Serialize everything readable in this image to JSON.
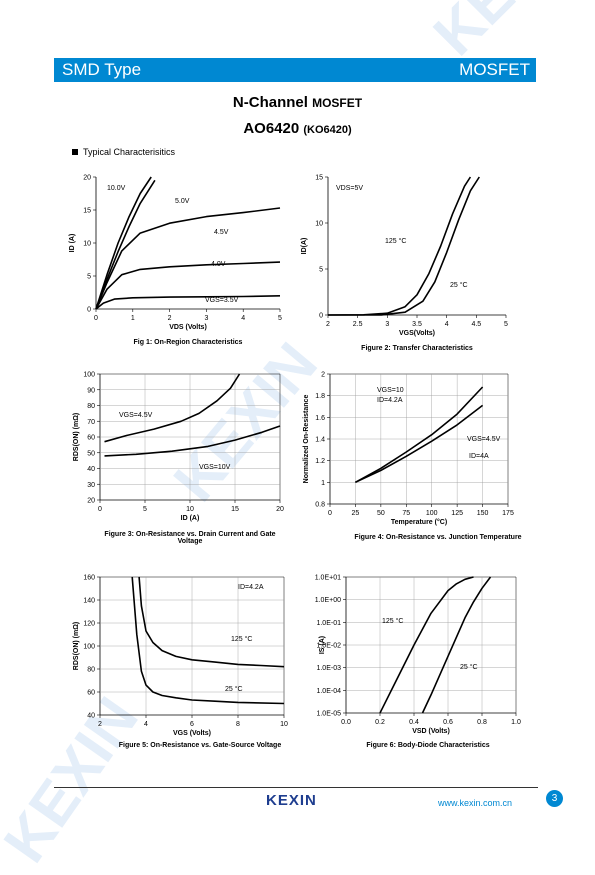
{
  "header": {
    "left_label": "SMD Type",
    "right_label": "MOSFET"
  },
  "title": {
    "line1_main": "N-Channel",
    "line1_small": "MOSFET",
    "line2_main": "AO6420",
    "line2_small": "(KO6420)"
  },
  "section_title": "Typical  Characterisitics",
  "watermark": "KEXIN",
  "footer": {
    "logo": "KEXIN",
    "url": "www.kexin.com.cn",
    "page": "3"
  },
  "colors": {
    "banner": "#0088d2",
    "logo": "#1e3d8f",
    "watermark": "#e4eef9"
  },
  "chart_data": [
    {
      "type": "line",
      "caption": "Fig 1: On-Region Characteristics",
      "xlabel": "VDS (Volts)",
      "ylabel": "ID (A)",
      "xlim": [
        0,
        5
      ],
      "ylim": [
        0,
        20
      ],
      "xticks": [
        0,
        1,
        2,
        3,
        4,
        5
      ],
      "yticks": [
        0,
        5,
        10,
        15,
        20
      ],
      "series": [
        {
          "name": "10.0V",
          "x": [
            0,
            0.3,
            0.6,
            0.9,
            1.2,
            1.5
          ],
          "y": [
            0,
            5.2,
            10,
            14,
            17.5,
            20
          ]
        },
        {
          "name": "5.0V",
          "x": [
            0,
            0.3,
            0.6,
            0.9,
            1.2,
            1.6
          ],
          "y": [
            0,
            4.5,
            8.7,
            12.5,
            16,
            19.5
          ]
        },
        {
          "name": "4.5V",
          "x": [
            0,
            0.3,
            0.7,
            1.2,
            2,
            3,
            4,
            5
          ],
          "y": [
            0,
            4,
            8.8,
            11.5,
            13,
            14,
            14.6,
            15.3
          ]
        },
        {
          "name": "4.0V",
          "x": [
            0,
            0.3,
            0.7,
            1.2,
            2,
            3,
            4,
            5
          ],
          "y": [
            0,
            3,
            5.2,
            6,
            6.4,
            6.7,
            6.9,
            7.1
          ]
        },
        {
          "name": "VGS=3.5V",
          "x": [
            0,
            0.2,
            0.5,
            1,
            2,
            3,
            4,
            5
          ],
          "y": [
            0,
            0.9,
            1.5,
            1.7,
            1.8,
            1.85,
            1.9,
            2
          ]
        }
      ]
    },
    {
      "type": "line",
      "caption": "Figure 2: Transfer Characteristics",
      "xlabel": "VGS(Volts)",
      "ylabel": "ID(A)",
      "xlim": [
        2,
        5
      ],
      "ylim": [
        0,
        15
      ],
      "xticks": [
        2,
        2.5,
        3,
        3.5,
        4,
        4.5,
        5
      ],
      "yticks": [
        0,
        5,
        10,
        15
      ],
      "annotations": [
        "VDS=5V"
      ],
      "series": [
        {
          "name": "125 °C",
          "x": [
            2,
            2.6,
            3.0,
            3.3,
            3.5,
            3.7,
            3.9,
            4.1,
            4.3,
            4.4
          ],
          "y": [
            0,
            0.02,
            0.2,
            0.9,
            2.2,
            4.5,
            7.5,
            11,
            14,
            15
          ]
        },
        {
          "name": "25 °C",
          "x": [
            2,
            2.9,
            3.3,
            3.6,
            3.8,
            4.0,
            4.2,
            4.4,
            4.55
          ],
          "y": [
            0,
            0.01,
            0.3,
            1.5,
            3.6,
            6.8,
            10.3,
            13.5,
            15
          ]
        }
      ]
    },
    {
      "type": "line",
      "caption": "Figure 3: On-Resistance vs. Drain Current and Gate Voltage",
      "xlabel": "ID (A)",
      "ylabel": "RDS(ON) (mΩ)",
      "xlim": [
        0,
        20
      ],
      "ylim": [
        20,
        100
      ],
      "xticks": [
        0,
        5,
        10,
        15,
        20
      ],
      "yticks": [
        20,
        30,
        40,
        50,
        60,
        70,
        80,
        90,
        100
      ],
      "series": [
        {
          "name": "VGS=4.5V",
          "x": [
            0.5,
            3,
            6,
            9,
            11,
            13,
            14.5,
            15.5
          ],
          "y": [
            57,
            61,
            65,
            70,
            75,
            83,
            91,
            100
          ]
        },
        {
          "name": "VGS=10V",
          "x": [
            0.5,
            4,
            8,
            12,
            15,
            18,
            20
          ],
          "y": [
            48,
            49,
            51,
            54,
            58,
            63,
            67
          ]
        }
      ]
    },
    {
      "type": "line",
      "caption": "Figure 4: On-Resistance vs. Junction Temperature",
      "xlabel": "Temperature (°C)",
      "ylabel": "Normalized On-Resistance",
      "xlim": [
        0,
        175
      ],
      "ylim": [
        0.8,
        2
      ],
      "xticks": [
        0,
        25,
        50,
        75,
        100,
        125,
        150,
        175
      ],
      "yticks": [
        0.8,
        1,
        1.2,
        1.4,
        1.6,
        1.8,
        2
      ],
      "annotations": [
        "VGS=10",
        "ID=4.2A",
        "VGS=4.5V",
        "ID=4A"
      ],
      "series": [
        {
          "name": "VGS=10V",
          "x": [
            25,
            50,
            75,
            100,
            125,
            150
          ],
          "y": [
            1.0,
            1.13,
            1.28,
            1.44,
            1.63,
            1.88
          ]
        },
        {
          "name": "VGS=4.5V",
          "x": [
            25,
            50,
            75,
            100,
            125,
            150
          ],
          "y": [
            1.0,
            1.11,
            1.24,
            1.38,
            1.53,
            1.71
          ]
        }
      ]
    },
    {
      "type": "line",
      "caption": "Figure 5: On-Resistance vs. Gate-Source Voltage",
      "xlabel": "VGS (Volts)",
      "ylabel": "RDS(ON) (mΩ)",
      "xlim": [
        2,
        10
      ],
      "ylim": [
        40,
        160
      ],
      "xticks": [
        2,
        4,
        6,
        8,
        10
      ],
      "yticks": [
        40,
        60,
        80,
        100,
        120,
        140,
        160
      ],
      "annotations": [
        "ID=4.2A"
      ],
      "series": [
        {
          "name": "125 °C",
          "x": [
            3.7,
            3.8,
            4,
            4.3,
            4.7,
            5.3,
            6,
            7,
            8,
            9,
            10
          ],
          "y": [
            160,
            135,
            113,
            103,
            96,
            91,
            88,
            86,
            84,
            83,
            82
          ]
        },
        {
          "name": "25 °C",
          "x": [
            3.4,
            3.6,
            3.8,
            4,
            4.3,
            4.7,
            5.3,
            6,
            7,
            8,
            10
          ],
          "y": [
            160,
            110,
            78,
            66,
            60,
            57,
            55,
            53,
            52,
            51,
            50
          ]
        }
      ]
    },
    {
      "type": "line",
      "caption": "Figure 6: Body-Diode Characteristics",
      "xlabel": "VSD (Volts)",
      "ylabel": "IS (A)",
      "xlim": [
        0,
        1
      ],
      "ylim": [
        -5,
        1
      ],
      "yscale": "log",
      "xticks": [
        "0.0",
        "0.2",
        "0.4",
        "0.6",
        "0.8",
        "1.0"
      ],
      "yticks": [
        "1.0E-05",
        "1.0E-04",
        "1.0E-03",
        "1.0E-02",
        "1.0E-01",
        "1.0E+00",
        "1.0E+01"
      ],
      "series": [
        {
          "name": "125 °C",
          "x": [
            0.2,
            0.3,
            0.4,
            0.5,
            0.6,
            0.65,
            0.7,
            0.75
          ],
          "y": [
            -5,
            -3.5,
            -2,
            -0.6,
            0.4,
            0.7,
            0.9,
            1
          ]
        },
        {
          "name": "25 °C",
          "x": [
            0.45,
            0.5,
            0.6,
            0.7,
            0.75,
            0.8,
            0.85
          ],
          "y": [
            -5,
            -4.2,
            -2.5,
            -0.8,
            -0.1,
            0.5,
            1
          ]
        }
      ]
    }
  ]
}
